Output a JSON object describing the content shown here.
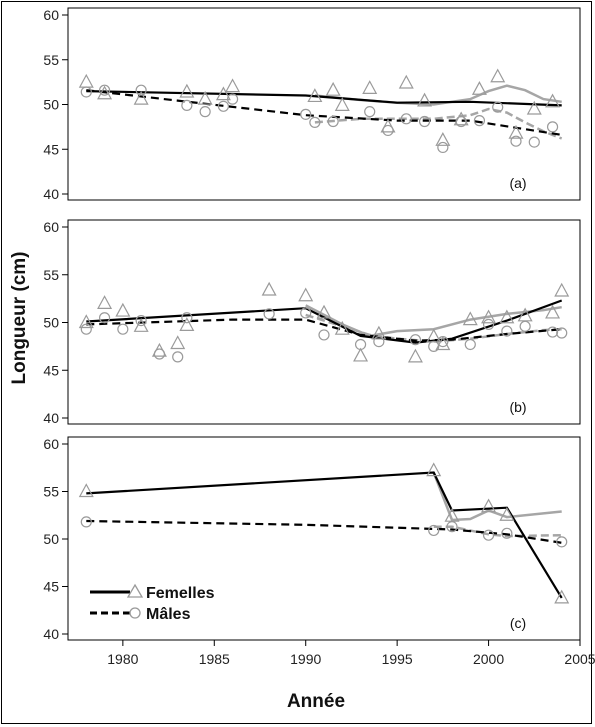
{
  "chart_data": {
    "type": "scatter",
    "xlabel": "Année",
    "ylabel": "Longueur (cm)",
    "xlim": [
      1977,
      2005
    ],
    "x_ticks": [
      1980,
      1985,
      1990,
      1995,
      2000,
      2005
    ],
    "ylim": [
      40,
      60
    ],
    "y_ticks": [
      40,
      45,
      50,
      55,
      60
    ],
    "grid": false,
    "legend": {
      "placement": "lower-left of panel (c)",
      "entries": [
        {
          "label": "Femelles",
          "line": "solid",
          "marker": "triangle"
        },
        {
          "label": "Mâles",
          "line": "dashed",
          "marker": "circle"
        }
      ]
    },
    "colors": {
      "trend": "#000000",
      "smooth": "#a6a6a6",
      "markers": "#9a9a9a"
    },
    "panels": [
      {
        "tag": "(a)",
        "females_points": {
          "x": [
            1978,
            1979,
            1981,
            1983.5,
            1984.5,
            1985.5,
            1986,
            1990.5,
            1991.5,
            1992,
            1993.5,
            1994.5,
            1995.5,
            1996.5,
            1997.5,
            1998.5,
            1999.5,
            2000.5,
            2001.5,
            2002.5,
            2003.5
          ],
          "y": [
            52.5,
            51.2,
            50.6,
            51.4,
            50.6,
            51.1,
            52,
            50.9,
            51.6,
            49.9,
            51.8,
            47.5,
            52.4,
            50.4,
            46,
            48.3,
            51.7,
            53.1,
            46.8,
            49.5,
            50.3
          ]
        },
        "males_points": {
          "x": [
            1978,
            1979,
            1981,
            1983.5,
            1984.5,
            1985.5,
            1986,
            1990,
            1990.5,
            1991.5,
            1993.5,
            1994.5,
            1995.5,
            1996.5,
            1997.5,
            1998.5,
            1999.5,
            2000.5,
            2001.5,
            2002.5,
            2003.5
          ],
          "y": [
            51.4,
            51.6,
            51.6,
            49.9,
            49.2,
            49.8,
            50.6,
            48.9,
            48,
            48.1,
            49.2,
            47.1,
            48.4,
            48.1,
            45.2,
            48.1,
            48.2,
            49.7,
            45.9,
            45.8,
            47.5
          ]
        },
        "females_trend": {
          "x": [
            1978,
            1990,
            1995,
            1999,
            2004
          ],
          "y": [
            51.5,
            51,
            50.2,
            50.3,
            49.9
          ]
        },
        "males_trend": {
          "x": [
            1978,
            1990,
            1995,
            1999,
            2004
          ],
          "y": [
            51.6,
            48.8,
            48.2,
            48.2,
            46.6
          ]
        },
        "females_smooth": {
          "x": [
            1990.5,
            1993,
            1995,
            1997,
            1999,
            2000,
            2001,
            2002,
            2003,
            2004
          ],
          "y": [
            51,
            50.5,
            50.2,
            50,
            50.6,
            51.5,
            52.1,
            51.6,
            50.6,
            50.3
          ]
        },
        "males_smooth": {
          "x": [
            1990.5,
            1993,
            1995,
            1997,
            1999,
            2000,
            2001,
            2002,
            2003,
            2004
          ],
          "y": [
            48,
            48.4,
            48.4,
            48.4,
            48.8,
            49.5,
            49.1,
            48,
            47,
            46.2
          ]
        }
      },
      {
        "tag": "(b)",
        "females_points": {
          "x": [
            1978,
            1979,
            1980,
            1981,
            1982,
            1983,
            1983.5,
            1988,
            1990,
            1991,
            1992,
            1993,
            1994,
            1996,
            1997,
            1997.5,
            1999,
            2000,
            2001,
            2002,
            2003.5,
            2004
          ],
          "y": [
            50,
            52,
            51.2,
            49.6,
            47,
            47.8,
            49.7,
            53.4,
            52.8,
            51,
            49.3,
            46.5,
            48.8,
            46.4,
            48.5,
            47.7,
            50.3,
            50.5,
            50.5,
            50.7,
            51,
            53.3
          ]
        },
        "males_points": {
          "x": [
            1978,
            1979,
            1980,
            1981,
            1982,
            1983,
            1983.5,
            1988,
            1990,
            1991,
            1993,
            1994,
            1996,
            1997,
            1997.5,
            1999,
            2000,
            2001,
            2002,
            2003.5,
            2004
          ],
          "y": [
            49.3,
            50.5,
            49.3,
            50.2,
            46.7,
            46.4,
            50.5,
            50.9,
            51,
            48.7,
            47.7,
            48,
            48.2,
            47.5,
            48,
            47.7,
            49.8,
            49.1,
            49.6,
            49,
            48.9
          ]
        },
        "females_trend": {
          "x": [
            1978,
            1990,
            1993,
            1996,
            1998,
            2001,
            2004
          ],
          "y": [
            50.1,
            51.5,
            48.6,
            47.9,
            48.3,
            50.2,
            52.3
          ]
        },
        "males_trend": {
          "x": [
            1978,
            1986,
            1990,
            1993,
            1996,
            1998,
            2001,
            2004
          ],
          "y": [
            49.8,
            50.3,
            50.3,
            48.7,
            48.1,
            48.2,
            48.8,
            49.3
          ]
        },
        "females_smooth": {
          "x": [
            1990,
            1992,
            1993.5,
            1995,
            1997,
            1999,
            2001,
            2003,
            2004
          ],
          "y": [
            51.8,
            49.8,
            48.6,
            49.1,
            49.3,
            50.3,
            50.9,
            51.3,
            51.6
          ]
        },
        "males_smooth": {
          "x": [
            1990,
            1992,
            1993.5,
            1995,
            1997,
            1999,
            2001,
            2003,
            2004
          ],
          "y": [
            50.8,
            49.6,
            48.7,
            48.3,
            48,
            48.3,
            48.8,
            49.2,
            49.3
          ]
        }
      },
      {
        "tag": "(c)",
        "females_points": {
          "x": [
            1978,
            1997,
            1998,
            2000,
            2001,
            2004
          ],
          "y": [
            55,
            57.2,
            52.4,
            53.4,
            52.5,
            43.8
          ]
        },
        "males_points": {
          "x": [
            1978,
            1997,
            1998,
            2000,
            2001,
            2004
          ],
          "y": [
            51.8,
            50.9,
            51.3,
            50.4,
            50.6,
            49.7
          ]
        },
        "females_trend": {
          "x": [
            1978,
            1997,
            1998,
            2001,
            2004
          ],
          "y": [
            54.8,
            57,
            53,
            53.3,
            43.8
          ]
        },
        "males_trend": {
          "x": [
            1978,
            1990,
            1998,
            2001,
            2004
          ],
          "y": [
            51.9,
            51.5,
            51,
            50.5,
            49.6
          ]
        },
        "females_smooth": {
          "x": [
            1997,
            1998,
            1999,
            2000,
            2001,
            2004
          ],
          "y": [
            57,
            52,
            52.1,
            53,
            52.3,
            52.9
          ]
        },
        "males_smooth": {
          "x": [
            1997,
            1998,
            2000,
            2001,
            2004
          ],
          "y": [
            51.3,
            51.3,
            50.5,
            50.3,
            50.4
          ]
        }
      }
    ]
  }
}
